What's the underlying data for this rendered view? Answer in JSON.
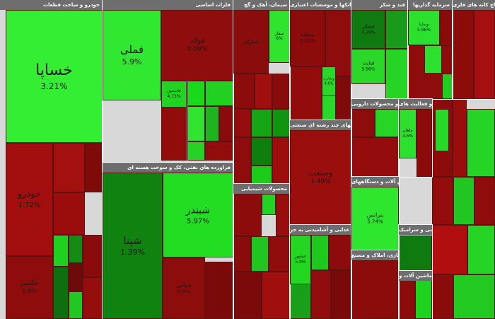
{
  "chart_data": {
    "type": "treemap",
    "colors": {
      "strong_green": "#2ee82e",
      "green": "#19c119",
      "dark_green": "#0e7d0e",
      "red": "#9a0f0f",
      "dark_red": "#6b0a0a",
      "header": "#6e6e6e"
    },
    "sectors": [
      {
        "name": "خودرو و ساخت قطعات",
        "tiles": [
          {
            "name": "خساپا",
            "value": "3.21%",
            "color": "#33ee33"
          },
          {
            "name": "خودرو",
            "value": "1.72%",
            "color": "#a30e0e"
          },
          {
            "name": "خگستر",
            "value": "1.0%",
            "color": "#8e0c0c"
          }
        ]
      },
      {
        "name": "فلزات اساسی",
        "tiles": [
          {
            "name": "فملی",
            "value": "5.9%",
            "color": "#2fe82f"
          },
          {
            "name": "فولاد",
            "value": "0.06%",
            "color": "#8f0d0d"
          },
          {
            "name": "فاسمین",
            "value": "4.73%",
            "color": "#22d422"
          }
        ]
      },
      {
        "name": "فراورده های نفتی، کک و سوخت هسته ای",
        "tiles": [
          {
            "name": "شپنا",
            "value": "1.39%",
            "color": "#0f820f"
          },
          {
            "name": "شبندر",
            "value": "5.97%",
            "color": "#22dd22"
          },
          {
            "name": "شپاس",
            "value": "0.4%",
            "color": "#8d0c0c"
          }
        ]
      },
      {
        "name": "سیمان، آهک و گچ",
        "tiles": [
          {
            "name": "ستران",
            "value": "",
            "color": "#8b0c0c"
          },
          {
            "name": "سفار",
            "value": "6%",
            "color": "#2fe32f"
          }
        ]
      },
      {
        "name": "محصولات شیمیایی",
        "tiles": []
      },
      {
        "name": "بانکها و موسسات اعتباری",
        "tiles": [
          {
            "name": "وبملت",
            "value": "0.35%",
            "color": "#8c0c0c"
          },
          {
            "name": "وتجارت",
            "value": "4.6%",
            "color": "#2ad82a"
          }
        ]
      },
      {
        "name": "شرکتهای چند رشته ای صنعتی",
        "tiles": [
          {
            "name": "وصنعت",
            "value": "1.49%",
            "color": "#9a0e0e"
          }
        ]
      },
      {
        "name": "محصولات غذایی و آشامیدنی به جز",
        "tiles": [
          {
            "name": "غبشهر",
            "value": "5.9%",
            "color": "#22d622"
          }
        ]
      },
      {
        "name": "قند و شکر",
        "tiles": [
          {
            "name": "قشکر",
            "value": "0.29%",
            "color": "#0f7a0f"
          },
          {
            "name": "قثابت",
            "value": "5.98%",
            "color": "#2ad82a"
          }
        ]
      },
      {
        "name": "سرمایه گذاریها",
        "tiles": [
          {
            "name": "وساپا",
            "value": "5.96%",
            "color": "#2ee02e"
          }
        ]
      },
      {
        "name": "استخراج کانه های فلزی",
        "tiles": []
      },
      {
        "name": "مواد و محصولات دارویی",
        "tiles": []
      },
      {
        "name": "رایانه و فعالیت های",
        "tiles": [
          {
            "name": "ماهان",
            "value": "4.6%",
            "color": "#2ee02e"
          }
        ]
      },
      {
        "name": "ماشین آلات و دستگاههای",
        "tiles": [
          {
            "name": "بترانس",
            "value": "5.74%",
            "color": "#2ee62e"
          }
        ]
      },
      {
        "name": "انبوه سازی، املاک و مستغ",
        "tiles": []
      },
      {
        "name": "کاشی و سرامیک",
        "tiles": []
      },
      {
        "name": "ماشین آلات و",
        "tiles": []
      }
    ]
  }
}
